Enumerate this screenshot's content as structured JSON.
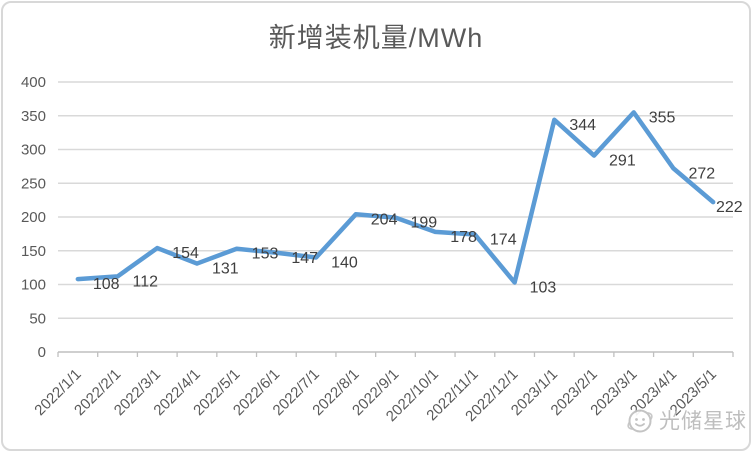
{
  "chart_data": {
    "type": "line",
    "title": "新增装机量/MWh",
    "categories": [
      "2022/1/1",
      "2022/2/1",
      "2022/3/1",
      "2022/4/1",
      "2022/5/1",
      "2022/6/1",
      "2022/7/1",
      "2022/8/1",
      "2022/9/1",
      "2022/10/1",
      "2022/11/1",
      "2022/12/1",
      "2023/1/1",
      "2023/2/1",
      "2023/3/1",
      "2023/4/1",
      "2023/5/1"
    ],
    "values": [
      108,
      112,
      154,
      131,
      153,
      147,
      140,
      204,
      199,
      178,
      174,
      103,
      344,
      291,
      355,
      272,
      222
    ],
    "xlabel": "",
    "ylabel": "",
    "ylim": [
      0,
      400
    ],
    "yticks": [
      0,
      50,
      100,
      150,
      200,
      250,
      300,
      350,
      400
    ],
    "grid": true,
    "legend": "none",
    "data_labels": true,
    "x_label_rotation_deg": -45
  },
  "watermark": {
    "text": "光储星球",
    "logo": "planet-face-logo"
  },
  "colors": {
    "line": "#5B9BD5",
    "gridline": "#D9D9D9",
    "axis_line": "#BFBFBF",
    "axis_label": "#595959",
    "data_label": "#3F3F3F",
    "title": "#595959",
    "watermark": "#B9B9B9",
    "card_border": "#D8D8D8",
    "background": "#FFFFFF"
  }
}
